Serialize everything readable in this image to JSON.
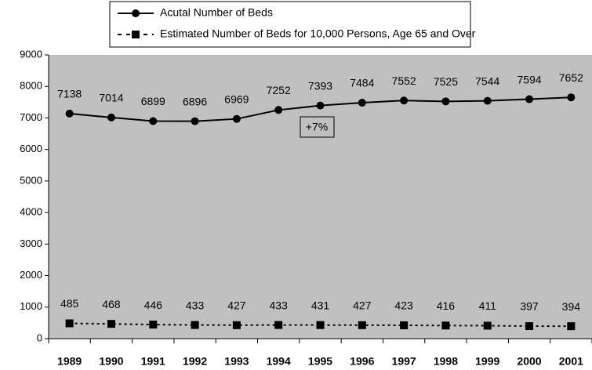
{
  "chart_data": {
    "type": "line",
    "categories": [
      "1989",
      "1990",
      "1991",
      "1992",
      "1993",
      "1994",
      "1995",
      "1996",
      "1997",
      "1998",
      "1999",
      "2000",
      "2001"
    ],
    "series": [
      {
        "name": "Acutal Number of Beds",
        "color": "#000000",
        "values": [
          7138,
          7014,
          6899,
          6896,
          6969,
          7252,
          7393,
          7484,
          7552,
          7525,
          7544,
          7594,
          7652
        ]
      },
      {
        "name": "Estimated Number of Beds for 10,000 Persons, Age 65 and Over",
        "color": "#000000",
        "values": [
          485,
          468,
          446,
          433,
          427,
          433,
          431,
          427,
          423,
          416,
          411,
          397,
          394
        ]
      }
    ],
    "ylim": [
      0,
      9000
    ],
    "yticks": [
      0,
      1000,
      2000,
      3000,
      4000,
      5000,
      6000,
      7000,
      8000,
      9000
    ],
    "annotations": [
      "+7%"
    ],
    "background": "#c0c0c0"
  }
}
